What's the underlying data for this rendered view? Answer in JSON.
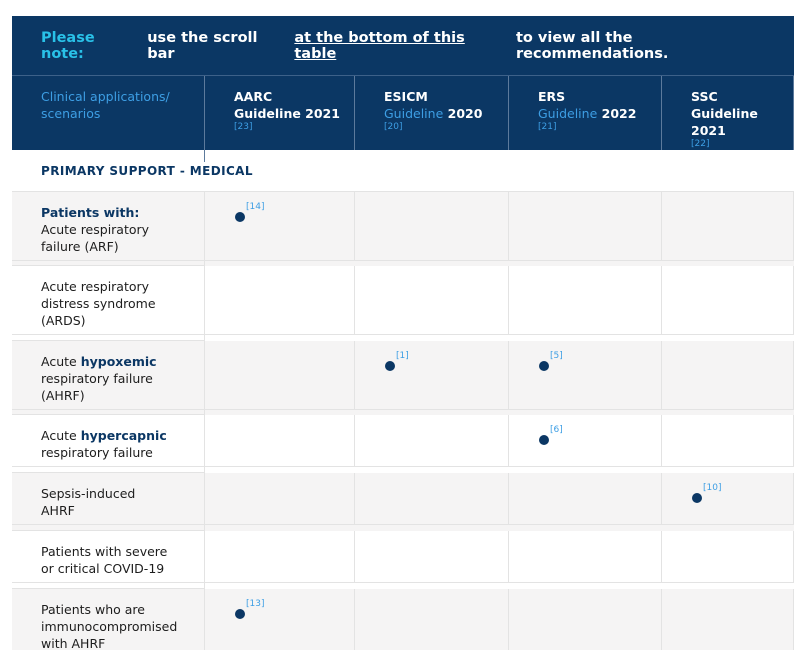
{
  "note": [
    {
      "text": "Please note:",
      "style": "label"
    },
    {
      "text": "use the scroll bar",
      "style": "plain"
    },
    {
      "text": "at the bottom of this table",
      "style": "link"
    },
    {
      "text": "to view all the recommendations.",
      "style": "plain"
    }
  ],
  "header": {
    "first": "Clinical applications/ scenarios",
    "columns": [
      {
        "name": "AARC",
        "link": null,
        "year": "Guideline 2021",
        "ref": "[23]"
      },
      {
        "name": "ESICM",
        "link": "Guideline",
        "year": "2020",
        "ref": "[20]"
      },
      {
        "name": "ERS",
        "link": "Guideline",
        "year": "2022",
        "ref": "[21]"
      },
      {
        "name": "SSC",
        "link": null,
        "year": "Guideline 2021",
        "ref": "[22]"
      }
    ]
  },
  "section": "PRIMARY SUPPORT - MEDICAL",
  "rows": [
    {
      "lines": [
        [
          {
            "text": "Patients with:",
            "bold": true
          }
        ],
        [
          {
            "text": "Acute respiratory"
          }
        ],
        [
          {
            "text": "failure (ARF)"
          }
        ]
      ],
      "cells": [
        "[14]",
        null,
        null,
        null
      ]
    },
    {
      "lines": [
        [
          {
            "text": "Acute respiratory"
          }
        ],
        [
          {
            "text": "distress syndrome"
          }
        ],
        [
          {
            "text": "(ARDS)"
          }
        ]
      ],
      "cells": [
        null,
        null,
        null,
        null
      ]
    },
    {
      "lines": [
        [
          {
            "text": "Acute"
          },
          {
            "text": "hypoxemic",
            "bold": true
          }
        ],
        [
          {
            "text": "respiratory failure"
          }
        ],
        [
          {
            "text": "(AHRF)"
          }
        ]
      ],
      "cells": [
        null,
        "[1]",
        "[5]",
        null
      ]
    },
    {
      "lines": [
        [
          {
            "text": "Acute"
          },
          {
            "text": "hypercapnic",
            "bold": true
          }
        ],
        [
          {
            "text": "respiratory failure"
          }
        ]
      ],
      "cells": [
        null,
        null,
        "[6]",
        null
      ]
    },
    {
      "lines": [
        [
          {
            "text": "Sepsis-induced"
          }
        ],
        [
          {
            "text": "AHRF"
          }
        ]
      ],
      "cells": [
        null,
        null,
        null,
        "[10]"
      ]
    },
    {
      "lines": [
        [
          {
            "text": "Patients with severe"
          }
        ],
        [
          {
            "text": "or critical COVID-19"
          }
        ]
      ],
      "cells": [
        null,
        null,
        null,
        null
      ]
    },
    {
      "lines": [
        [
          {
            "text": "Patients who are"
          }
        ],
        [
          {
            "text": "immunocompromised"
          }
        ],
        [
          {
            "text": "with AHRF"
          }
        ]
      ],
      "cells": [
        "[13]",
        null,
        null,
        null
      ]
    }
  ]
}
